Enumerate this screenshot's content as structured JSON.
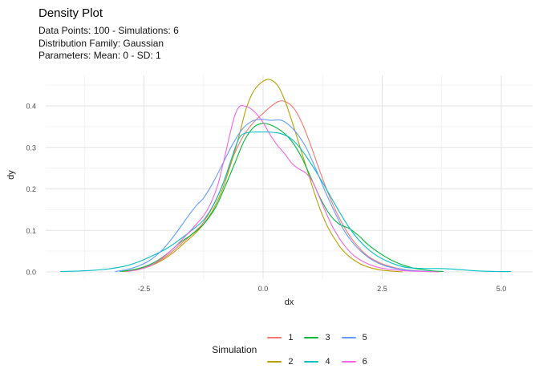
{
  "title": "Density Plot",
  "subtitle": {
    "lines": [
      "Data Points: 100 - Simulations: 6",
      "Distribution Family: Gaussian",
      "Parameters: Mean: 0 - SD: 1"
    ]
  },
  "chart_data": {
    "type": "line",
    "title": "Density Plot",
    "subtitle": "Data Points: 100 - Simulations: 6 / Distribution Family: Gaussian / Parameters: Mean: 0 - SD: 1",
    "xlabel": "dx",
    "ylabel": "dy",
    "xlim": [
      -4.56,
      5.66
    ],
    "ylim": [
      0,
      0.472
    ],
    "grid": true,
    "x_ticks": [
      -2.5,
      0.0,
      2.5,
      5.0
    ],
    "x_tick_labels": [
      "-2.5",
      "0.0",
      "2.5",
      "5.0"
    ],
    "x_minor_ticks": [
      -3.75,
      -1.25,
      1.25,
      3.75
    ],
    "y_ticks": [
      0.0,
      0.1,
      0.2,
      0.3,
      0.4
    ],
    "y_tick_labels": [
      "0.0",
      "0.1",
      "0.2",
      "0.3",
      "0.4"
    ],
    "y_minor_ticks": [
      0.05,
      0.15,
      0.25,
      0.35,
      0.45
    ],
    "legend_title": "Simulation",
    "legend_position": "bottom",
    "grid_major_color": "#e3e3e3",
    "grid_minor_color": "#f2f2f2",
    "series": [
      {
        "name": "1",
        "color": "#F8766D",
        "points": [
          [
            -2.95,
            0.001
          ],
          [
            -2.7,
            0.005
          ],
          [
            -2.45,
            0.012
          ],
          [
            -2.2,
            0.025
          ],
          [
            -1.95,
            0.045
          ],
          [
            -1.7,
            0.07
          ],
          [
            -1.45,
            0.095
          ],
          [
            -1.25,
            0.12
          ],
          [
            -1.0,
            0.17
          ],
          [
            -0.8,
            0.225
          ],
          [
            -0.6,
            0.285
          ],
          [
            -0.4,
            0.33
          ],
          [
            -0.2,
            0.36
          ],
          [
            0.0,
            0.382
          ],
          [
            0.2,
            0.402
          ],
          [
            0.37,
            0.412
          ],
          [
            0.55,
            0.405
          ],
          [
            0.7,
            0.385
          ],
          [
            0.85,
            0.35
          ],
          [
            1.0,
            0.305
          ],
          [
            1.2,
            0.24
          ],
          [
            1.4,
            0.18
          ],
          [
            1.6,
            0.13
          ],
          [
            1.8,
            0.09
          ],
          [
            2.0,
            0.06
          ],
          [
            2.2,
            0.038
          ],
          [
            2.45,
            0.022
          ],
          [
            2.7,
            0.012
          ],
          [
            2.95,
            0.006
          ],
          [
            3.2,
            0.003
          ],
          [
            3.45,
            0.001
          ]
        ]
      },
      {
        "name": "2",
        "color": "#B79F00",
        "points": [
          [
            -2.9,
            0.001
          ],
          [
            -2.65,
            0.005
          ],
          [
            -2.4,
            0.013
          ],
          [
            -2.15,
            0.026
          ],
          [
            -1.9,
            0.045
          ],
          [
            -1.65,
            0.07
          ],
          [
            -1.45,
            0.09
          ],
          [
            -1.25,
            0.115
          ],
          [
            -1.05,
            0.15
          ],
          [
            -0.85,
            0.2
          ],
          [
            -0.65,
            0.27
          ],
          [
            -0.5,
            0.33
          ],
          [
            -0.35,
            0.395
          ],
          [
            -0.2,
            0.435
          ],
          [
            -0.05,
            0.455
          ],
          [
            0.12,
            0.464
          ],
          [
            0.3,
            0.45
          ],
          [
            0.45,
            0.415
          ],
          [
            0.6,
            0.365
          ],
          [
            0.75,
            0.31
          ],
          [
            0.9,
            0.255
          ],
          [
            1.05,
            0.2
          ],
          [
            1.2,
            0.15
          ],
          [
            1.35,
            0.11
          ],
          [
            1.5,
            0.08
          ],
          [
            1.65,
            0.055
          ],
          [
            1.8,
            0.038
          ],
          [
            2.0,
            0.022
          ],
          [
            2.2,
            0.012
          ],
          [
            2.45,
            0.005
          ],
          [
            2.7,
            0.002
          ],
          [
            2.93,
            0.0
          ]
        ]
      },
      {
        "name": "3",
        "color": "#00BA38",
        "points": [
          [
            -3.0,
            0.001
          ],
          [
            -2.75,
            0.005
          ],
          [
            -2.5,
            0.012
          ],
          [
            -2.25,
            0.025
          ],
          [
            -2.0,
            0.045
          ],
          [
            -1.75,
            0.07
          ],
          [
            -1.5,
            0.09
          ],
          [
            -1.25,
            0.115
          ],
          [
            -1.0,
            0.155
          ],
          [
            -0.8,
            0.205
          ],
          [
            -0.6,
            0.26
          ],
          [
            -0.4,
            0.315
          ],
          [
            -0.2,
            0.348
          ],
          [
            0.0,
            0.358
          ],
          [
            0.2,
            0.352
          ],
          [
            0.4,
            0.338
          ],
          [
            0.6,
            0.315
          ],
          [
            0.8,
            0.278
          ],
          [
            1.0,
            0.228
          ],
          [
            1.2,
            0.178
          ],
          [
            1.4,
            0.138
          ],
          [
            1.6,
            0.115
          ],
          [
            1.8,
            0.105
          ],
          [
            2.0,
            0.088
          ],
          [
            2.2,
            0.066
          ],
          [
            2.45,
            0.045
          ],
          [
            2.7,
            0.028
          ],
          [
            2.95,
            0.016
          ],
          [
            3.2,
            0.008
          ],
          [
            3.5,
            0.003
          ],
          [
            3.78,
            0.001
          ]
        ]
      },
      {
        "name": "4",
        "color": "#00BFC4",
        "points": [
          [
            -4.25,
            0.001
          ],
          [
            -3.9,
            0.002
          ],
          [
            -3.55,
            0.004
          ],
          [
            -3.2,
            0.008
          ],
          [
            -2.9,
            0.014
          ],
          [
            -2.6,
            0.025
          ],
          [
            -2.3,
            0.04
          ],
          [
            -2.0,
            0.058
          ],
          [
            -1.75,
            0.078
          ],
          [
            -1.5,
            0.1
          ],
          [
            -1.25,
            0.125
          ],
          [
            -1.05,
            0.16
          ],
          [
            -0.85,
            0.21
          ],
          [
            -0.7,
            0.26
          ],
          [
            -0.55,
            0.31
          ],
          [
            -0.45,
            0.33
          ],
          [
            -0.3,
            0.336
          ],
          [
            -0.1,
            0.337
          ],
          [
            0.1,
            0.337
          ],
          [
            0.3,
            0.335
          ],
          [
            0.45,
            0.33
          ],
          [
            0.6,
            0.32
          ],
          [
            0.8,
            0.295
          ],
          [
            1.0,
            0.262
          ],
          [
            1.2,
            0.225
          ],
          [
            1.4,
            0.185
          ],
          [
            1.6,
            0.145
          ],
          [
            1.8,
            0.108
          ],
          [
            2.0,
            0.078
          ],
          [
            2.2,
            0.055
          ],
          [
            2.4,
            0.038
          ],
          [
            2.6,
            0.026
          ],
          [
            2.8,
            0.017
          ],
          [
            3.0,
            0.011
          ],
          [
            3.2,
            0.009
          ],
          [
            3.5,
            0.008
          ],
          [
            3.8,
            0.008
          ],
          [
            4.05,
            0.006
          ],
          [
            4.3,
            0.004
          ],
          [
            4.6,
            0.002
          ],
          [
            4.9,
            0.001
          ],
          [
            5.2,
            0.001
          ]
        ]
      },
      {
        "name": "5",
        "color": "#619CFF",
        "points": [
          [
            -3.1,
            0.001
          ],
          [
            -2.85,
            0.006
          ],
          [
            -2.6,
            0.015
          ],
          [
            -2.35,
            0.03
          ],
          [
            -2.1,
            0.055
          ],
          [
            -1.85,
            0.09
          ],
          [
            -1.6,
            0.13
          ],
          [
            -1.4,
            0.16
          ],
          [
            -1.25,
            0.178
          ],
          [
            -1.05,
            0.215
          ],
          [
            -0.85,
            0.26
          ],
          [
            -0.65,
            0.305
          ],
          [
            -0.45,
            0.342
          ],
          [
            -0.25,
            0.362
          ],
          [
            -0.05,
            0.368
          ],
          [
            0.15,
            0.365
          ],
          [
            0.35,
            0.366
          ],
          [
            0.5,
            0.358
          ],
          [
            0.7,
            0.335
          ],
          [
            0.9,
            0.3
          ],
          [
            1.1,
            0.25
          ],
          [
            1.3,
            0.195
          ],
          [
            1.5,
            0.145
          ],
          [
            1.7,
            0.1
          ],
          [
            1.9,
            0.068
          ],
          [
            2.1,
            0.045
          ],
          [
            2.3,
            0.028
          ],
          [
            2.55,
            0.015
          ],
          [
            2.8,
            0.008
          ],
          [
            3.05,
            0.004
          ],
          [
            3.3,
            0.002
          ],
          [
            3.55,
            0.001
          ]
        ]
      },
      {
        "name": "6",
        "color": "#F564E2",
        "points": [
          [
            -2.85,
            0.001
          ],
          [
            -2.6,
            0.006
          ],
          [
            -2.35,
            0.016
          ],
          [
            -2.1,
            0.035
          ],
          [
            -1.85,
            0.06
          ],
          [
            -1.6,
            0.09
          ],
          [
            -1.4,
            0.115
          ],
          [
            -1.25,
            0.135
          ],
          [
            -1.1,
            0.165
          ],
          [
            -0.95,
            0.21
          ],
          [
            -0.82,
            0.27
          ],
          [
            -0.7,
            0.33
          ],
          [
            -0.6,
            0.375
          ],
          [
            -0.5,
            0.398
          ],
          [
            -0.4,
            0.4
          ],
          [
            -0.28,
            0.395
          ],
          [
            -0.15,
            0.382
          ],
          [
            0.0,
            0.36
          ],
          [
            0.15,
            0.33
          ],
          [
            0.3,
            0.305
          ],
          [
            0.45,
            0.285
          ],
          [
            0.6,
            0.262
          ],
          [
            0.75,
            0.248
          ],
          [
            0.9,
            0.238
          ],
          [
            1.05,
            0.215
          ],
          [
            1.2,
            0.175
          ],
          [
            1.35,
            0.135
          ],
          [
            1.5,
            0.1
          ],
          [
            1.7,
            0.065
          ],
          [
            1.9,
            0.04
          ],
          [
            2.1,
            0.025
          ],
          [
            2.35,
            0.013
          ],
          [
            2.6,
            0.007
          ],
          [
            2.85,
            0.004
          ],
          [
            3.1,
            0.002
          ],
          [
            3.4,
            0.001
          ],
          [
            3.68,
            0.0
          ]
        ]
      }
    ]
  }
}
